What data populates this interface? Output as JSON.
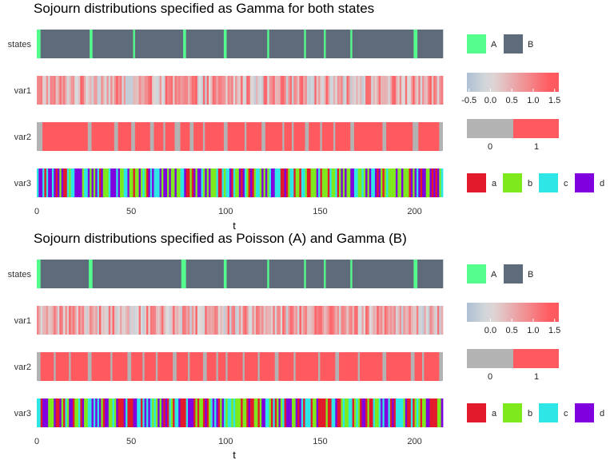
{
  "chart_data": [
    {
      "type": "heatmap",
      "title": "Sojourn distributions specified as Gamma for both states",
      "xlabel": "t",
      "x_ticks": [
        0,
        50,
        100,
        150,
        200
      ],
      "xlim": [
        0,
        215
      ],
      "rows": [
        "states",
        "var1",
        "var2",
        "var3"
      ],
      "states_runs": [
        {
          "state": "A",
          "start": 0,
          "end": 2
        },
        {
          "state": "B",
          "start": 2,
          "end": 28
        },
        {
          "state": "A",
          "start": 28,
          "end": 29.5
        },
        {
          "state": "B",
          "start": 29.5,
          "end": 51
        },
        {
          "state": "A",
          "start": 51,
          "end": 52
        },
        {
          "state": "B",
          "start": 52,
          "end": 77.5
        },
        {
          "state": "A",
          "start": 77.5,
          "end": 79
        },
        {
          "state": "B",
          "start": 79,
          "end": 99
        },
        {
          "state": "A",
          "start": 99,
          "end": 100.5
        },
        {
          "state": "B",
          "start": 100.5,
          "end": 122
        },
        {
          "state": "A",
          "start": 122,
          "end": 123
        },
        {
          "state": "B",
          "start": 123,
          "end": 141.5
        },
        {
          "state": "A",
          "start": 141.5,
          "end": 142.5
        },
        {
          "state": "B",
          "start": 142.5,
          "end": 152
        },
        {
          "state": "A",
          "start": 152,
          "end": 153
        },
        {
          "state": "B",
          "start": 153,
          "end": 166
        },
        {
          "state": "A",
          "start": 166,
          "end": 167
        },
        {
          "state": "B",
          "start": 167,
          "end": 199.5
        },
        {
          "state": "A",
          "start": 199.5,
          "end": 201.5
        },
        {
          "state": "B",
          "start": 201.5,
          "end": 215
        }
      ],
      "var2_zero_intervals": [
        [
          0,
          3
        ],
        [
          27,
          29
        ],
        [
          41,
          43
        ],
        [
          50,
          52
        ],
        [
          60,
          62
        ],
        [
          67,
          68
        ],
        [
          73,
          76
        ],
        [
          81,
          83
        ],
        [
          88,
          89
        ],
        [
          99,
          101
        ],
        [
          110,
          111
        ],
        [
          119,
          121
        ],
        [
          130,
          131
        ],
        [
          135,
          136
        ],
        [
          142,
          144
        ],
        [
          150,
          151
        ],
        [
          157,
          158
        ],
        [
          166,
          168
        ],
        [
          183,
          185
        ],
        [
          199,
          202
        ],
        [
          213,
          215
        ]
      ],
      "legend_states": [
        "A",
        "B"
      ],
      "legend_var1_ticks": [
        "-0.5",
        "0.0",
        "0.5",
        "1.0",
        "1.5"
      ],
      "legend_var2_ticks": [
        "0",
        "1"
      ],
      "legend_var3": [
        "a",
        "b",
        "c",
        "d"
      ]
    },
    {
      "type": "heatmap",
      "title": "Sojourn distributions specified as Poisson (A) and Gamma (B)",
      "xlabel": "t",
      "x_ticks": [
        0,
        50,
        100,
        150,
        200
      ],
      "xlim": [
        0,
        215
      ],
      "rows": [
        "states",
        "var1",
        "var2",
        "var3"
      ],
      "states_runs": [
        {
          "state": "A",
          "start": 0,
          "end": 2
        },
        {
          "state": "B",
          "start": 2,
          "end": 27.5
        },
        {
          "state": "A",
          "start": 27.5,
          "end": 29.5
        },
        {
          "state": "B",
          "start": 29.5,
          "end": 76.5
        },
        {
          "state": "A",
          "start": 76.5,
          "end": 79
        },
        {
          "state": "B",
          "start": 79,
          "end": 99
        },
        {
          "state": "A",
          "start": 99,
          "end": 100.5
        },
        {
          "state": "B",
          "start": 100.5,
          "end": 122
        },
        {
          "state": "A",
          "start": 122,
          "end": 123
        },
        {
          "state": "B",
          "start": 123,
          "end": 141.5
        },
        {
          "state": "A",
          "start": 141.5,
          "end": 142.5
        },
        {
          "state": "B",
          "start": 142.5,
          "end": 152
        },
        {
          "state": "A",
          "start": 152,
          "end": 153
        },
        {
          "state": "B",
          "start": 153,
          "end": 166
        },
        {
          "state": "A",
          "start": 166,
          "end": 167
        },
        {
          "state": "B",
          "start": 167,
          "end": 199.5
        },
        {
          "state": "A",
          "start": 199.5,
          "end": 201.5
        },
        {
          "state": "B",
          "start": 201.5,
          "end": 215
        }
      ],
      "var2_zero_intervals": [
        [
          0,
          2
        ],
        [
          9,
          10
        ],
        [
          17,
          18
        ],
        [
          27,
          29
        ],
        [
          39,
          40
        ],
        [
          48,
          50
        ],
        [
          56,
          57
        ],
        [
          63,
          64
        ],
        [
          72,
          74
        ],
        [
          80,
          81
        ],
        [
          88,
          90
        ],
        [
          95,
          96
        ],
        [
          100,
          101
        ],
        [
          109,
          110
        ],
        [
          117,
          118
        ],
        [
          126,
          128
        ],
        [
          136,
          137
        ],
        [
          149,
          150
        ],
        [
          158,
          160
        ],
        [
          170,
          171
        ],
        [
          183,
          185
        ],
        [
          198,
          200
        ],
        [
          204,
          205
        ],
        [
          213,
          215
        ]
      ],
      "legend_states": [
        "A",
        "B"
      ],
      "legend_var1_ticks": [
        "0.0",
        "0.5",
        "1.0",
        "1.5"
      ],
      "legend_var2_ticks": [
        "0",
        "1"
      ],
      "legend_var3": [
        "a",
        "b",
        "c",
        "d"
      ]
    }
  ],
  "colors": {
    "state_A": "#55fd8d",
    "state_B": "#5d6b7a",
    "var1_low": "#a9bdd2",
    "var1_mid": "#dcdcdc",
    "var1_high": "#ff5a5f",
    "var2_zero": "#b3b3b3",
    "var2_one": "#ff5a5f",
    "var3_a": "#e31a2c",
    "var3_b": "#7eea1e",
    "var3_c": "#2ee6e6",
    "var3_d": "#8000e0"
  }
}
